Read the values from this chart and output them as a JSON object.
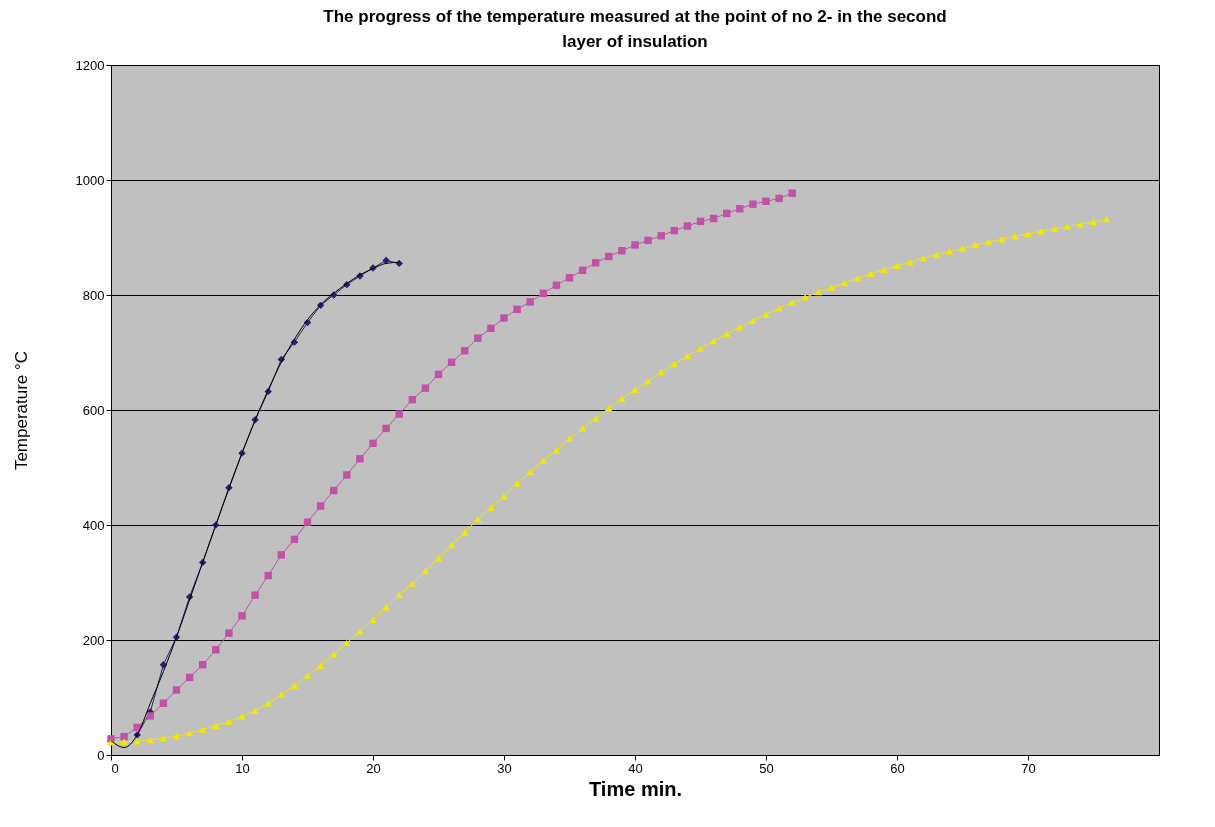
{
  "chart_data": {
    "type": "line",
    "title": "The progress of the temperature measured at  the point of no 2- in the second layer of insulation",
    "xlabel": "Time min.",
    "ylabel": "Temperature °C",
    "xlim": [
      0,
      80
    ],
    "xticks": [
      0,
      10,
      20,
      30,
      40,
      50,
      60,
      70
    ],
    "ylim": [
      0,
      1200
    ],
    "yticks": [
      0,
      200,
      400,
      600,
      800,
      1000,
      1200
    ],
    "grid": "y",
    "series": [
      {
        "color": "#23236e",
        "marker": "diamond",
        "x": [
          2,
          3,
          4,
          5,
          6,
          7,
          8,
          9,
          10,
          11,
          12,
          13,
          14,
          15,
          16,
          17,
          18,
          19,
          20,
          21,
          22
        ],
        "values": [
          35,
          75,
          157,
          205,
          275,
          335,
          400,
          465,
          525,
          583,
          632,
          688,
          718,
          752,
          782,
          800,
          818,
          833,
          847,
          860,
          855
        ]
      },
      {
        "color": "#c052a8",
        "marker": "square",
        "x": [
          0,
          1,
          2,
          3,
          4,
          5,
          6,
          7,
          8,
          9,
          10,
          11,
          12,
          13,
          14,
          15,
          16,
          17,
          18,
          19,
          20,
          21,
          22,
          23,
          24,
          25,
          26,
          27,
          28,
          29,
          30,
          31,
          32,
          33,
          34,
          35,
          36,
          37,
          38,
          39,
          40,
          41,
          42,
          43,
          44,
          45,
          46,
          47,
          48,
          49,
          50,
          51,
          52
        ],
        "values": [
          28,
          32,
          48,
          68,
          90,
          113,
          135,
          157,
          183,
          212,
          242,
          278,
          312,
          348,
          375,
          405,
          433,
          460,
          487,
          515,
          542,
          568,
          593,
          618,
          638,
          662,
          683,
          703,
          725,
          742,
          760,
          775,
          788,
          803,
          817,
          830,
          843,
          856,
          867,
          877,
          887,
          895,
          903,
          912,
          920,
          928,
          933,
          942,
          950,
          958,
          963,
          968,
          977
        ]
      },
      {
        "color": "#f0e800",
        "marker": "triangle",
        "x": [
          0,
          1,
          2,
          3,
          4,
          5,
          6,
          7,
          8,
          9,
          10,
          11,
          12,
          13,
          14,
          15,
          16,
          17,
          18,
          19,
          20,
          21,
          22,
          23,
          24,
          25,
          26,
          27,
          28,
          29,
          30,
          31,
          32,
          33,
          34,
          35,
          36,
          37,
          38,
          39,
          40,
          41,
          42,
          43,
          44,
          45,
          46,
          47,
          48,
          49,
          50,
          51,
          52,
          53,
          54,
          55,
          56,
          57,
          58,
          59,
          60,
          61,
          62,
          63,
          64,
          65,
          66,
          67,
          68,
          69,
          70,
          71,
          72,
          73,
          74,
          75,
          76
        ],
        "values": [
          22,
          23,
          24,
          26,
          29,
          33,
          38,
          44,
          51,
          58,
          67,
          77,
          90,
          105,
          120,
          138,
          155,
          175,
          195,
          215,
          235,
          257,
          278,
          298,
          320,
          342,
          365,
          387,
          410,
          430,
          450,
          472,
          492,
          512,
          530,
          550,
          568,
          585,
          603,
          620,
          635,
          650,
          666,
          680,
          694,
          707,
          720,
          732,
          744,
          755,
          766,
          777,
          787,
          796,
          805,
          813,
          821,
          829,
          837,
          844,
          851,
          857,
          864,
          870,
          876,
          881,
          887,
          892,
          897,
          902,
          906,
          911,
          915,
          919,
          923,
          927,
          932
        ]
      },
      {
        "type": "line",
        "color": "#000000",
        "marker": "none",
        "x": [
          0,
          1,
          2,
          3,
          4,
          5,
          6,
          7,
          8,
          9,
          10,
          11,
          12,
          13,
          14,
          15,
          16,
          17,
          18,
          19,
          20,
          21,
          22
        ],
        "values": [
          25,
          13,
          35,
          90,
          145,
          205,
          270,
          335,
          400,
          463,
          525,
          582,
          635,
          683,
          723,
          757,
          783,
          803,
          820,
          835,
          846,
          855,
          857
        ]
      }
    ]
  }
}
